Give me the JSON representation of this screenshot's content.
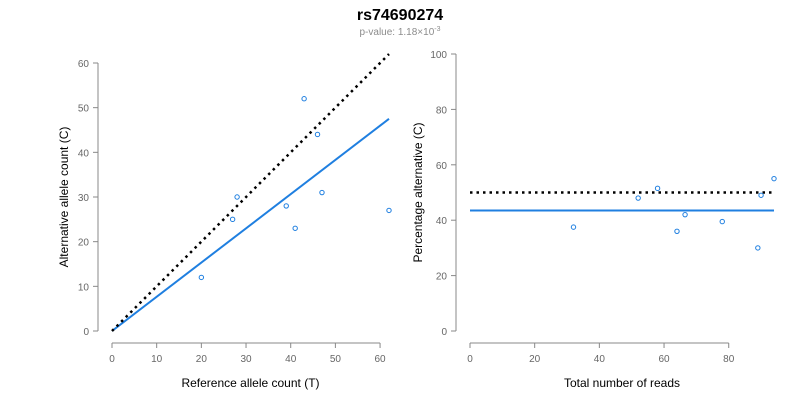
{
  "title": "rs74690274",
  "subtitle": {
    "label": "p-value: 1.18×10",
    "exponent": "-3"
  },
  "colors": {
    "fit_line": "#1f7fe0",
    "points": "#1f7fe0",
    "expected_line": "#000000",
    "axis": "#888888",
    "tick_text": "#666666"
  },
  "chart_data": [
    {
      "type": "scatter",
      "xlabel": "Reference allele count (T)",
      "ylabel": "Alternative allele count (C)",
      "xlim": [
        0,
        62
      ],
      "ylim": [
        0,
        60
      ],
      "xticks": [
        0,
        10,
        20,
        30,
        40,
        50,
        60
      ],
      "yticks": [
        0,
        10,
        20,
        30,
        40,
        50,
        60
      ],
      "grid": false,
      "points": [
        {
          "x": 20,
          "y": 12
        },
        {
          "x": 27,
          "y": 25
        },
        {
          "x": 28,
          "y": 30
        },
        {
          "x": 39,
          "y": 28
        },
        {
          "x": 41,
          "y": 23
        },
        {
          "x": 43,
          "y": 52
        },
        {
          "x": 46,
          "y": 44
        },
        {
          "x": 47,
          "y": 31
        },
        {
          "x": 62,
          "y": 27
        }
      ],
      "lines": [
        {
          "style": "solid",
          "color": "#1f7fe0",
          "x": [
            0,
            62
          ],
          "y": [
            0,
            47.5
          ]
        },
        {
          "style": "dotted",
          "color": "#000000",
          "x": [
            0,
            62
          ],
          "y": [
            0,
            62
          ]
        }
      ]
    },
    {
      "type": "scatter",
      "xlabel": "Total number of reads",
      "ylabel": "Percentage alternative (C)",
      "xlim": [
        0,
        94
      ],
      "ylim": [
        0,
        100
      ],
      "xticks": [
        0,
        20,
        40,
        60,
        80
      ],
      "yticks": [
        0,
        20,
        40,
        60,
        80,
        100
      ],
      "grid": false,
      "points": [
        {
          "x": 32,
          "y": 37.5
        },
        {
          "x": 52,
          "y": 48
        },
        {
          "x": 58,
          "y": 51.5
        },
        {
          "x": 64,
          "y": 36
        },
        {
          "x": 66.5,
          "y": 42
        },
        {
          "x": 78,
          "y": 39.5
        },
        {
          "x": 89,
          "y": 30
        },
        {
          "x": 90,
          "y": 49
        },
        {
          "x": 94,
          "y": 55
        }
      ],
      "lines": [
        {
          "style": "solid",
          "color": "#1f7fe0",
          "x": [
            0,
            94
          ],
          "y": [
            43.5,
            43.5
          ]
        },
        {
          "style": "dotted",
          "color": "#000000",
          "x": [
            0,
            94
          ],
          "y": [
            50,
            50
          ]
        }
      ]
    }
  ]
}
